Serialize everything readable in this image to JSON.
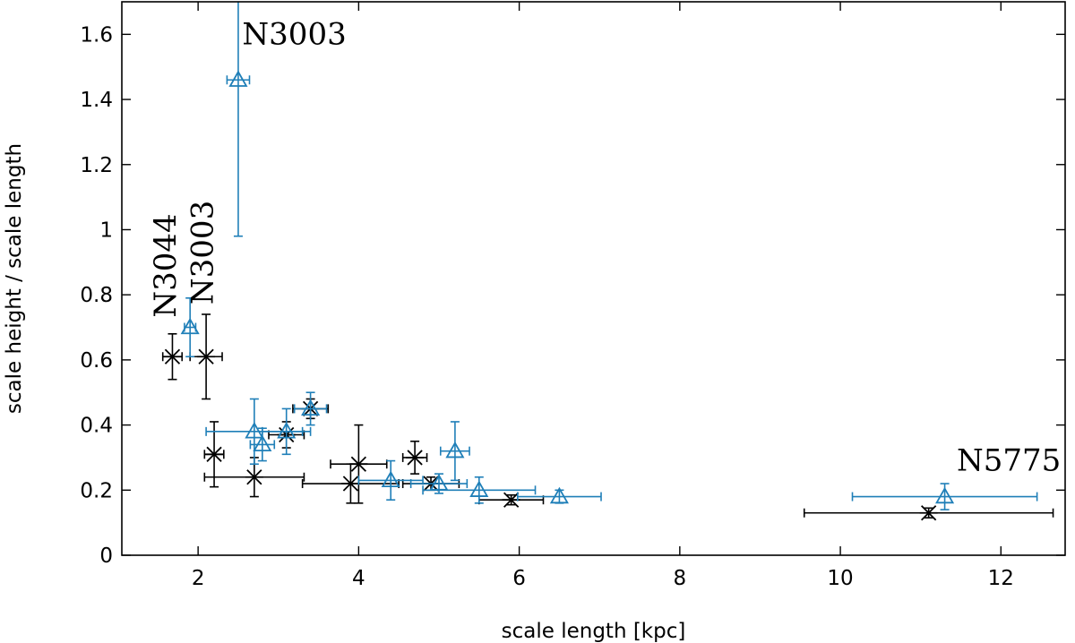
{
  "chart_data": {
    "type": "scatter",
    "xlabel": "scale length [kpc]",
    "ylabel": "scale height / scale length",
    "xlim": [
      1.05,
      12.8
    ],
    "ylim": [
      0,
      1.7
    ],
    "xticks": [
      2,
      4,
      6,
      8,
      10,
      12
    ],
    "xtick_labels": [
      "2",
      "4",
      "6",
      "8",
      "10",
      "12"
    ],
    "yticks": [
      0,
      0.2,
      0.4,
      0.6,
      0.8,
      1,
      1.2,
      1.4,
      1.6
    ],
    "ytick_labels": [
      "0",
      "0.2",
      "0.4",
      "0.6",
      "0.8",
      "1",
      "1.2",
      "1.4",
      "1.6"
    ],
    "grid": false,
    "series": [
      {
        "name": "black",
        "marker": "asterisk",
        "color": "#000000",
        "points": [
          {
            "x": 1.68,
            "y": 0.61,
            "xerr": 0.12,
            "yerr": 0.07
          },
          {
            "x": 2.1,
            "y": 0.61,
            "xerr": 0.2,
            "yerr": 0.13
          },
          {
            "x": 2.2,
            "y": 0.31,
            "xerr": 0.12,
            "yerr": 0.1
          },
          {
            "x": 2.7,
            "y": 0.24,
            "xerr": 0.62,
            "yerr": 0.06
          },
          {
            "x": 3.1,
            "y": 0.37,
            "xerr": 0.22,
            "yerr": 0.04
          },
          {
            "x": 3.4,
            "y": 0.45,
            "xerr": 0.22,
            "yerr": 0.03
          },
          {
            "x": 3.9,
            "y": 0.22,
            "xerr": 0.6,
            "yerr": 0.06
          },
          {
            "x": 4.0,
            "y": 0.28,
            "xerr": 0.35,
            "yerr": 0.12
          },
          {
            "x": 4.7,
            "y": 0.3,
            "xerr": 0.15,
            "yerr": 0.05
          },
          {
            "x": 4.9,
            "y": 0.22,
            "xerr": 0.35,
            "yerr": 0.02
          },
          {
            "x": 5.9,
            "y": 0.17,
            "xerr": 0.4,
            "yerr": 0.015
          },
          {
            "x": 11.1,
            "y": 0.13,
            "xerr": 1.55,
            "yerr": 0.015
          }
        ]
      },
      {
        "name": "blue",
        "marker": "triangle",
        "color": "#1f7fb8",
        "points": [
          {
            "x": 2.5,
            "y": 1.46,
            "xerr": 0.14,
            "yerr_low": 0.48,
            "yerr_high": 0.3
          },
          {
            "x": 1.9,
            "y": 0.7,
            "xerr": 0.07,
            "yerr": 0.09
          },
          {
            "x": 2.7,
            "y": 0.38,
            "xerr": 0.6,
            "yerr": 0.1
          },
          {
            "x": 2.8,
            "y": 0.34,
            "xerr": 0.15,
            "yerr": 0.05
          },
          {
            "x": 3.1,
            "y": 0.38,
            "xerr": 0.3,
            "yerr": 0.07
          },
          {
            "x": 3.4,
            "y": 0.45,
            "xerr": 0.2,
            "yerr": 0.05
          },
          {
            "x": 4.4,
            "y": 0.23,
            "xerr": 0.4,
            "yerr": 0.06
          },
          {
            "x": 5.0,
            "y": 0.22,
            "xerr": 0.35,
            "yerr": 0.03
          },
          {
            "x": 5.2,
            "y": 0.32,
            "xerr": 0.18,
            "yerr": 0.09
          },
          {
            "x": 5.5,
            "y": 0.2,
            "xerr": 0.7,
            "yerr": 0.04
          },
          {
            "x": 6.5,
            "y": 0.18,
            "xerr": 0.52,
            "yerr": 0.02
          },
          {
            "x": 11.3,
            "y": 0.18,
            "xerr": 1.15,
            "yerr": 0.04
          }
        ]
      }
    ],
    "annotations": [
      {
        "text": "N3003",
        "x": 2.55,
        "y": 1.57,
        "rotation": 0
      },
      {
        "text": "N5775",
        "x": 11.45,
        "y": 0.26,
        "rotation": 0
      },
      {
        "text": "N3044",
        "x": 1.72,
        "y": 0.73,
        "rotation": -90
      },
      {
        "text": "N3003",
        "x": 2.18,
        "y": 0.77,
        "rotation": -90
      }
    ]
  }
}
